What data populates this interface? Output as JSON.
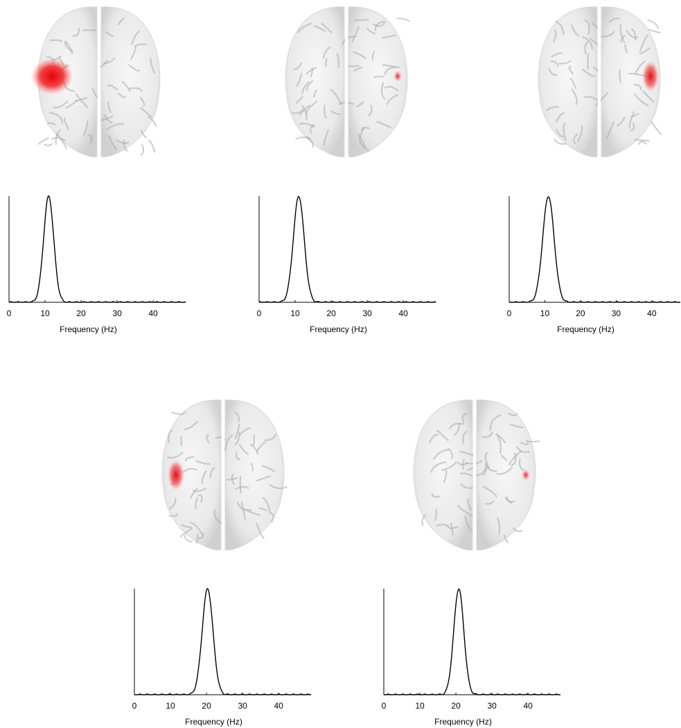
{
  "chart_data": [
    {
      "type": "line",
      "xlabel": "Frequency (Hz)",
      "ylabel": "",
      "xlim": [
        0,
        49
      ],
      "ylim": [
        0,
        1
      ],
      "xticks": [
        0,
        10,
        20,
        30,
        40
      ],
      "series": [
        {
          "peak_hz": 11,
          "width_hz": 1.4,
          "values_at_xticks": [
            0.0,
            0.9,
            0.0,
            0.0,
            0.0
          ]
        }
      ],
      "brain_activation": {
        "hemisphere": "left",
        "region": "lateral frontal",
        "intensity": "high"
      }
    },
    {
      "type": "line",
      "xlabel": "Frequency (Hz)",
      "ylabel": "",
      "xlim": [
        0,
        49
      ],
      "ylim": [
        0,
        1
      ],
      "xticks": [
        0,
        10,
        20,
        30,
        40
      ],
      "series": [
        {
          "peak_hz": 11,
          "width_hz": 1.5,
          "values_at_xticks": [
            0.0,
            0.92,
            0.0,
            0.0,
            0.0
          ]
        }
      ],
      "brain_activation": {
        "hemisphere": "right",
        "region": "lateral frontal",
        "intensity": "low"
      }
    },
    {
      "type": "line",
      "xlabel": "Frequency (Hz)",
      "ylabel": "",
      "xlim": [
        0,
        48
      ],
      "ylim": [
        0,
        1
      ],
      "xticks": [
        0,
        10,
        20,
        30,
        40
      ],
      "series": [
        {
          "peak_hz": 11,
          "width_hz": 1.6,
          "values_at_xticks": [
            0.0,
            0.91,
            0.0,
            0.0,
            0.0
          ]
        }
      ],
      "brain_activation": {
        "hemisphere": "right",
        "region": "lateral frontal",
        "intensity": "medium"
      }
    },
    {
      "type": "line",
      "xlabel": "Frequency (Hz)",
      "ylabel": "",
      "xlim": [
        0,
        49
      ],
      "ylim": [
        0,
        1
      ],
      "xticks": [
        0,
        10,
        20,
        30,
        40
      ],
      "series": [
        {
          "peak_hz": 20.3,
          "width_hz": 1.5,
          "values_at_xticks": [
            0.0,
            0.0,
            0.98,
            0.0,
            0.0
          ]
        }
      ],
      "brain_activation": {
        "hemisphere": "left",
        "region": "lateral central",
        "intensity": "medium"
      }
    },
    {
      "type": "line",
      "xlabel": "Frequency (Hz)",
      "ylabel": "",
      "xlim": [
        0,
        49
      ],
      "ylim": [
        0,
        1
      ],
      "xticks": [
        0,
        10,
        20,
        30,
        40
      ],
      "series": [
        {
          "peak_hz": 20.8,
          "width_hz": 1.4,
          "values_at_xticks": [
            0.0,
            0.0,
            0.9,
            0.0,
            0.0
          ]
        }
      ],
      "brain_activation": {
        "hemisphere": "right",
        "region": "lateral central",
        "intensity": "low"
      }
    }
  ]
}
